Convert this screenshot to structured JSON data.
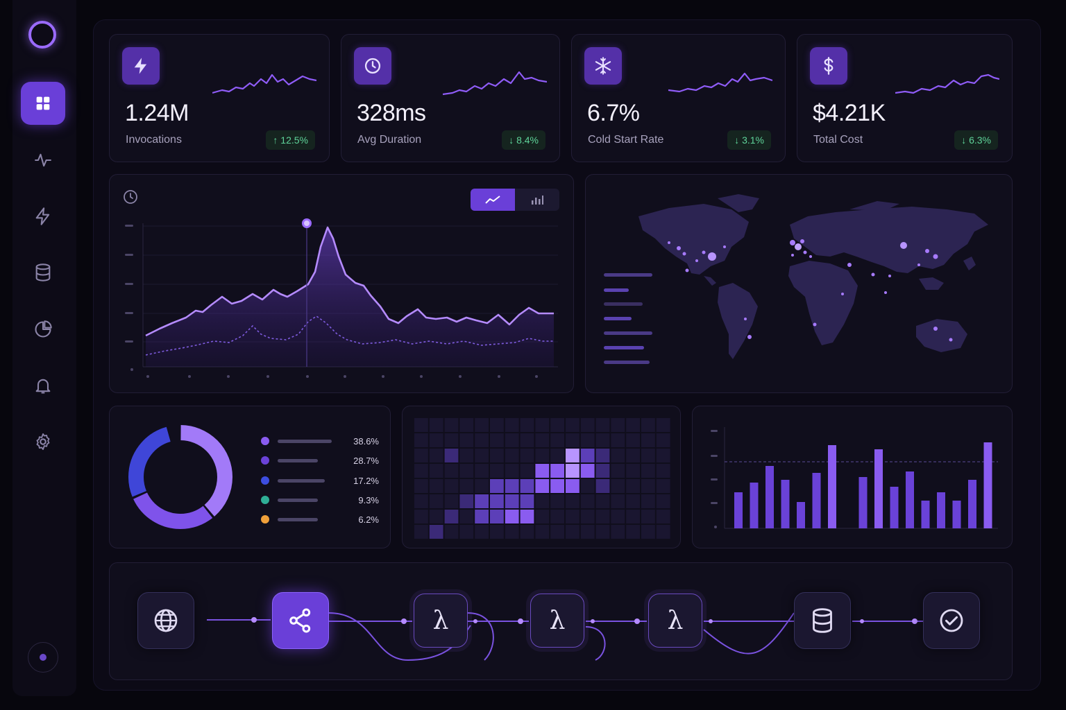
{
  "sidebar": {
    "items": [
      {
        "name": "dashboard-icon",
        "active": true
      },
      {
        "name": "activity-icon",
        "active": false
      },
      {
        "name": "lightning-icon",
        "active": false
      },
      {
        "name": "database-icon",
        "active": false
      },
      {
        "name": "pie-chart-icon",
        "active": false
      },
      {
        "name": "bell-icon",
        "active": false
      },
      {
        "name": "gear-icon",
        "active": false
      }
    ]
  },
  "kpis": [
    {
      "icon": "lightning-icon",
      "value": "1.24M",
      "label": "Invocations",
      "delta": "↑ 12.5%"
    },
    {
      "icon": "clock-icon",
      "value": "328ms",
      "label": "Avg Duration",
      "delta": "↓ 8.4%"
    },
    {
      "icon": "snowflake-icon",
      "value": "6.7%",
      "label": "Cold Start Rate",
      "delta": "↓ 3.1%"
    },
    {
      "icon": "dollar-icon",
      "value": "$4.21K",
      "label": "Total Cost",
      "delta": "↓ 6.3%"
    }
  ],
  "timeseries": {
    "toggle_options": [
      "line-chart-icon",
      "bar-chart-icon"
    ],
    "selected": "line-chart-icon"
  },
  "breakdown": {
    "items": [
      {
        "color": "#8a5cf0",
        "value": "38.6%"
      },
      {
        "color": "#6a42d8",
        "value": "28.7%"
      },
      {
        "color": "#3d4de0",
        "value": "17.2%"
      },
      {
        "color": "#2fae96",
        "value": "9.3%"
      },
      {
        "color": "#f0a03a",
        "value": "6.2%"
      }
    ]
  },
  "colors": {
    "accent": "#6a3fd8",
    "accent_light": "#a77bff",
    "positive": "#5fd49a",
    "panel": "#100e1c",
    "background": "#07060d"
  },
  "pipeline": {
    "nodes": [
      "globe-icon",
      "share-icon",
      "lambda-icon",
      "lambda-icon",
      "lambda-icon",
      "database-icon",
      "check-circle-icon"
    ],
    "lambda_glyph": "λ"
  }
}
